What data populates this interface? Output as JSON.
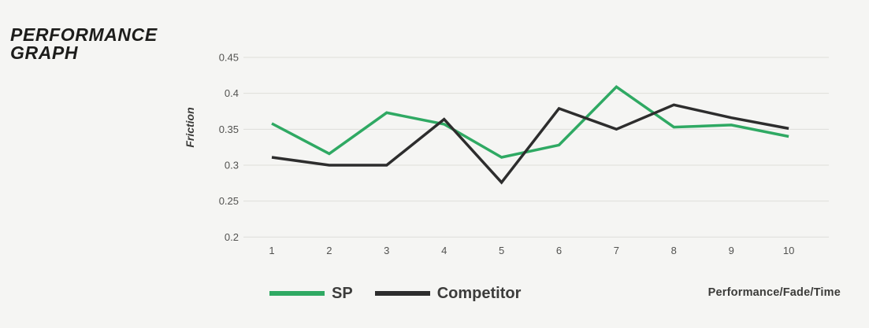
{
  "header": {
    "title_line1": "PERFORMANCE",
    "title_line2": "GRAPH"
  },
  "chart_data": {
    "type": "line",
    "title": "Performance Graph",
    "xlabel": "Performance/Fade/Time",
    "ylabel": "Friction",
    "x": [
      "1",
      "2",
      "3",
      "4",
      "5",
      "6",
      "7",
      "8",
      "9",
      "10"
    ],
    "ytick_labels": [
      "0.45",
      "0.4",
      "0.35",
      "0.3",
      "0.25",
      "0.2"
    ],
    "ylim": [
      0.2,
      0.45
    ],
    "grid": "horizontal",
    "legend_position": "bottom",
    "series": [
      {
        "name": "SP",
        "color": "#2FA963",
        "values": [
          0.358,
          0.316,
          0.373,
          0.357,
          0.311,
          0.328,
          0.409,
          0.353,
          0.356,
          0.34
        ]
      },
      {
        "name": "Competitor",
        "color": "#2D2D2D",
        "values": [
          0.311,
          0.3,
          0.3,
          0.364,
          0.276,
          0.379,
          0.35,
          0.384,
          0.366,
          0.351
        ]
      }
    ]
  },
  "colors": {
    "background": "#F5F5F3",
    "gridline": "#DEDEDA",
    "tick_text": "#525250",
    "title_text": "#1D1D1B",
    "legend_text": "#3C3C3B"
  }
}
